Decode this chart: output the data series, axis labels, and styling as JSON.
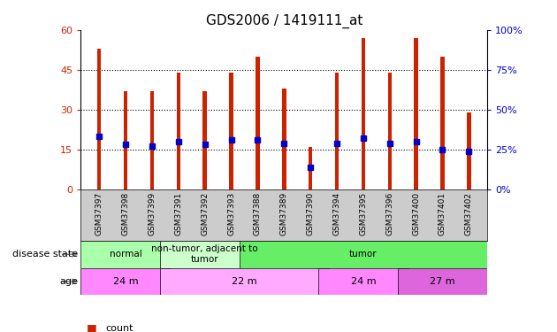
{
  "title": "GDS2006 / 1419111_at",
  "samples": [
    "GSM37397",
    "GSM37398",
    "GSM37399",
    "GSM37391",
    "GSM37392",
    "GSM37393",
    "GSM37388",
    "GSM37389",
    "GSM37390",
    "GSM37394",
    "GSM37395",
    "GSM37396",
    "GSM37400",
    "GSM37401",
    "GSM37402"
  ],
  "counts": [
    53,
    37,
    37,
    44,
    37,
    44,
    50,
    38,
    16,
    44,
    57,
    44,
    57,
    50,
    29
  ],
  "percentiles": [
    33,
    28,
    27,
    30,
    28,
    31,
    31,
    29,
    14,
    29,
    32,
    29,
    30,
    25,
    24
  ],
  "bar_color": "#cc2200",
  "dot_color": "#0000cc",
  "left_ylim": [
    0,
    60
  ],
  "left_yticks": [
    0,
    15,
    30,
    45,
    60
  ],
  "right_ylim": [
    0,
    100
  ],
  "right_yticks": [
    0,
    25,
    50,
    75,
    100
  ],
  "left_ycolor": "#cc2200",
  "right_ycolor": "#0000cc",
  "plot_bg_color": "#ffffff",
  "xtick_bg_color": "#cccccc",
  "disease_state_groups": [
    {
      "label": "normal",
      "start": 0,
      "end": 3,
      "color": "#aaffaa"
    },
    {
      "label": "non-tumor, adjacent to\ntumor",
      "start": 3,
      "end": 6,
      "color": "#ccffcc"
    },
    {
      "label": "tumor",
      "start": 6,
      "end": 15,
      "color": "#66ee66"
    }
  ],
  "age_groups": [
    {
      "label": "24 m",
      "start": 0,
      "end": 3,
      "color": "#ff88ff"
    },
    {
      "label": "22 m",
      "start": 3,
      "end": 9,
      "color": "#ffaaff"
    },
    {
      "label": "24 m",
      "start": 9,
      "end": 12,
      "color": "#ff88ff"
    },
    {
      "label": "27 m",
      "start": 12,
      "end": 15,
      "color": "#dd66dd"
    }
  ],
  "legend_count_color": "#cc2200",
  "legend_percentile_color": "#0000cc",
  "row_label_disease": "disease state",
  "row_label_age": "age",
  "bar_width": 0.15
}
